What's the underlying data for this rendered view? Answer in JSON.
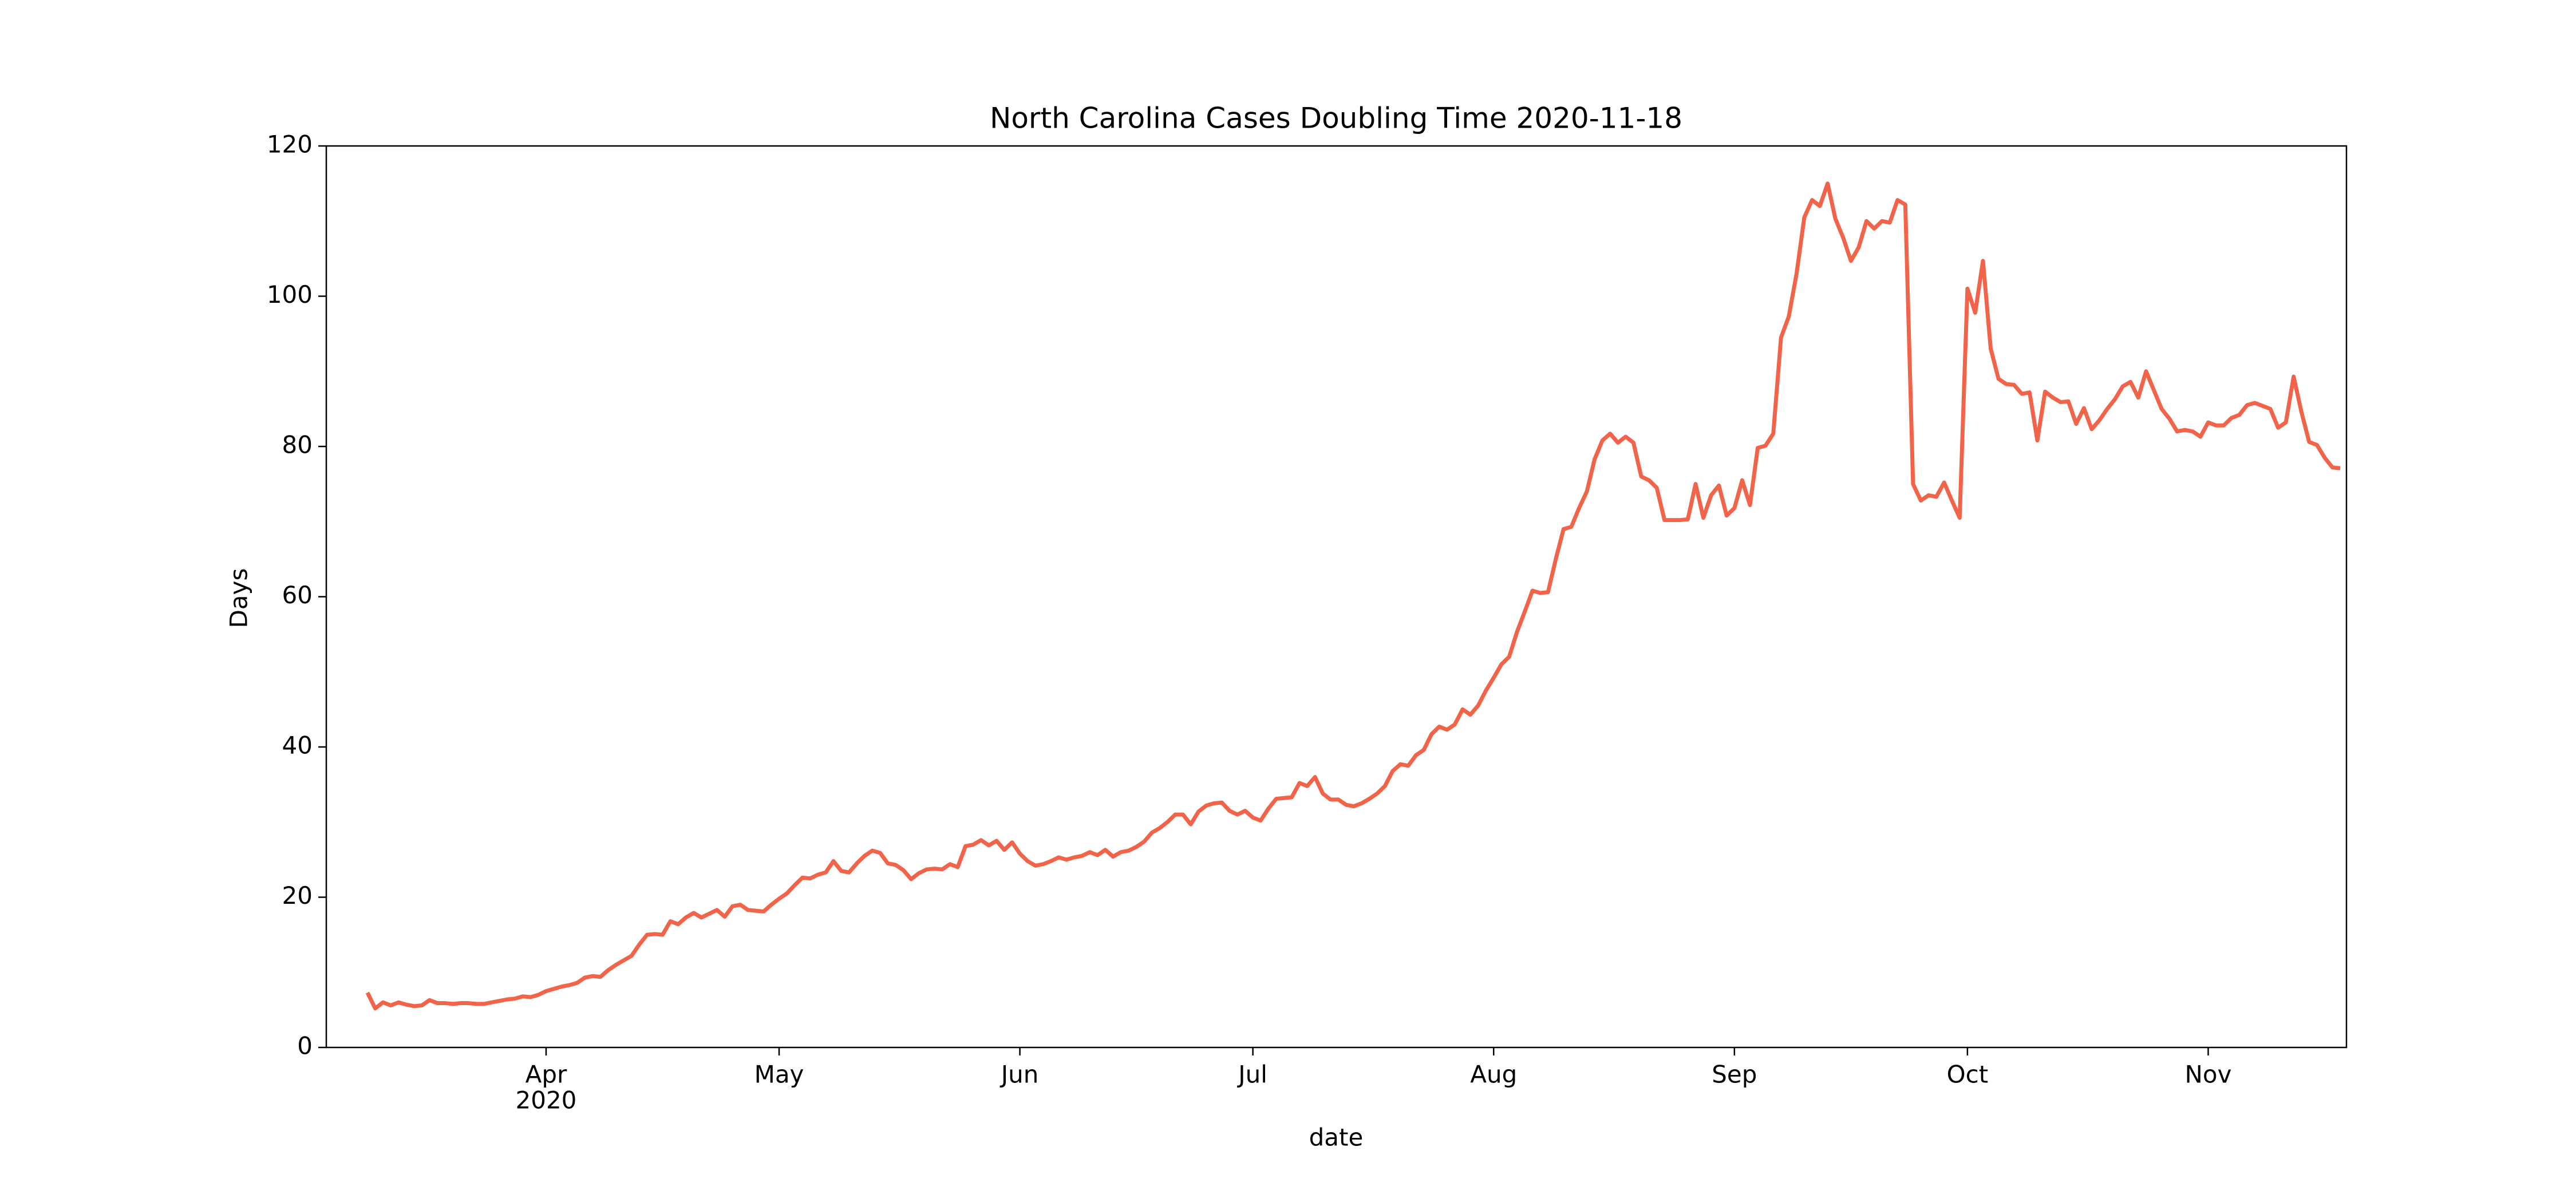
{
  "chart_data": {
    "type": "line",
    "title": "North Carolina Cases Doubling Time 2020-11-18",
    "xlabel": "date",
    "ylabel": "Days",
    "year_label": "2020",
    "color": "#f26449",
    "ylim": [
      0,
      120
    ],
    "yticks": [
      0,
      20,
      40,
      60,
      80,
      100,
      120
    ],
    "categories": [
      null,
      null,
      null,
      null,
      null,
      null,
      null,
      null,
      null,
      null,
      null,
      null,
      null,
      null,
      null,
      null,
      null,
      null,
      null,
      null,
      null,
      null,
      null,
      "Apr",
      null,
      null,
      null,
      null,
      null,
      null,
      null,
      null,
      null,
      null,
      null,
      null,
      null,
      null,
      null,
      null,
      null,
      null,
      null,
      null,
      null,
      null,
      null,
      null,
      null,
      null,
      null,
      null,
      null,
      "May",
      null,
      null,
      null,
      null,
      null,
      null,
      null,
      null,
      null,
      null,
      null,
      null,
      null,
      null,
      null,
      null,
      null,
      null,
      null,
      null,
      null,
      null,
      null,
      null,
      null,
      null,
      null,
      null,
      null,
      null,
      "Jun",
      null,
      null,
      null,
      null,
      null,
      null,
      null,
      null,
      null,
      null,
      null,
      null,
      null,
      null,
      null,
      null,
      null,
      null,
      null,
      null,
      null,
      null,
      null,
      null,
      null,
      null,
      null,
      null,
      null,
      "Jul",
      null,
      null,
      null,
      null,
      null,
      null,
      null,
      null,
      null,
      null,
      null,
      null,
      null,
      null,
      null,
      null,
      null,
      null,
      null,
      null,
      null,
      null,
      null,
      null,
      null,
      null,
      null,
      null,
      null,
      null,
      "Aug",
      null,
      null,
      null,
      null,
      null,
      null,
      null,
      null,
      null,
      null,
      null,
      null,
      null,
      null,
      null,
      null,
      null,
      null,
      null,
      null,
      null,
      null,
      null,
      null,
      null,
      null,
      null,
      null,
      null,
      null,
      "Sep",
      null,
      null,
      null,
      null,
      null,
      null,
      null,
      null,
      null,
      null,
      null,
      null,
      null,
      null,
      null,
      null,
      null,
      null,
      null,
      null,
      null,
      null,
      null,
      null,
      null,
      null,
      null,
      null,
      null,
      "Oct",
      null,
      null,
      null,
      null,
      null,
      null,
      null,
      null,
      null,
      null,
      null,
      null,
      null,
      null,
      null,
      null,
      null,
      null,
      null,
      null,
      null,
      null,
      null,
      null,
      null,
      null,
      null,
      null,
      null,
      null,
      "Nov",
      null,
      null,
      null,
      null,
      null,
      null,
      null,
      null,
      null,
      null,
      null,
      null,
      null,
      null,
      null,
      null,
      null
    ],
    "values": [
      7.3,
      5.2,
      6.0,
      5.6,
      6.0,
      5.7,
      5.5,
      5.6,
      6.3,
      5.9,
      5.9,
      5.8,
      5.9,
      5.9,
      5.8,
      5.8,
      6.0,
      6.2,
      6.4,
      6.5,
      6.8,
      6.7,
      7.0,
      7.5,
      7.8,
      8.1,
      8.3,
      8.6,
      9.3,
      9.5,
      9.4,
      10.3,
      11.0,
      11.6,
      12.2,
      13.7,
      15.0,
      15.1,
      15.0,
      16.8,
      16.4,
      17.3,
      17.9,
      17.3,
      17.8,
      18.3,
      17.4,
      18.8,
      19.0,
      18.3,
      18.2,
      18.1,
      19.0,
      19.8,
      20.5,
      21.6,
      22.6,
      22.5,
      23.0,
      23.3,
      24.8,
      23.5,
      23.3,
      24.5,
      25.5,
      26.2,
      25.9,
      24.5,
      24.3,
      23.6,
      22.4,
      23.2,
      23.7,
      23.8,
      23.7,
      24.4,
      24.0,
      26.8,
      27.0,
      27.6,
      26.9,
      27.5,
      26.3,
      27.3,
      25.8,
      24.8,
      24.2,
      24.4,
      24.8,
      25.3,
      25.0,
      25.3,
      25.5,
      26.0,
      25.6,
      26.3,
      25.4,
      26.0,
      26.2,
      26.7,
      27.4,
      28.6,
      29.2,
      30.0,
      31.0,
      31.0,
      29.7,
      31.4,
      32.2,
      32.5,
      32.6,
      31.5,
      31.0,
      31.5,
      30.6,
      30.2,
      31.8,
      33.1,
      33.2,
      33.3,
      35.2,
      34.8,
      36.0,
      33.8,
      33.0,
      33.0,
      32.3,
      32.1,
      32.5,
      33.1,
      33.8,
      34.8,
      36.8,
      37.7,
      37.5,
      38.9,
      39.6,
      41.7,
      42.7,
      42.3,
      43.0,
      45.0,
      44.3,
      45.5,
      47.5,
      49.2,
      51.0,
      52.0,
      55.3,
      58.0,
      60.8,
      60.5,
      60.6,
      65.0,
      69.0,
      69.3,
      71.8,
      74.0,
      78.3,
      80.8,
      81.7,
      80.5,
      81.3,
      80.5,
      76.0,
      75.5,
      74.5,
      70.2,
      70.2,
      70.2,
      70.3,
      75.0,
      70.5,
      73.5,
      74.8,
      70.8,
      71.8,
      75.5,
      72.2,
      79.8,
      80.1,
      81.7,
      94.5,
      97.3,
      103.0,
      110.5,
      112.8,
      112.0,
      115.0,
      110.3,
      107.8,
      104.7,
      106.5,
      110.0,
      109.0,
      110.0,
      109.8,
      112.8,
      112.2,
      75.0,
      72.8,
      73.5,
      73.3,
      75.2,
      72.8,
      70.5,
      101.0,
      97.8,
      104.7,
      93.0,
      89.0,
      88.3,
      88.2,
      87.0,
      87.2,
      80.8,
      87.3,
      86.5,
      85.9,
      86.0,
      83.0,
      85.1,
      82.3,
      83.5,
      85.0,
      86.3,
      88.0,
      88.6,
      86.5,
      90.0,
      87.5,
      85.0,
      83.7,
      82.0,
      82.2,
      82.0,
      81.3,
      83.2,
      82.8,
      82.8,
      83.8,
      84.2,
      85.5,
      85.8,
      85.4,
      85.0,
      82.5,
      83.2,
      89.3,
      84.6,
      80.6,
      80.2,
      78.5,
      77.2,
      77.1
    ]
  }
}
